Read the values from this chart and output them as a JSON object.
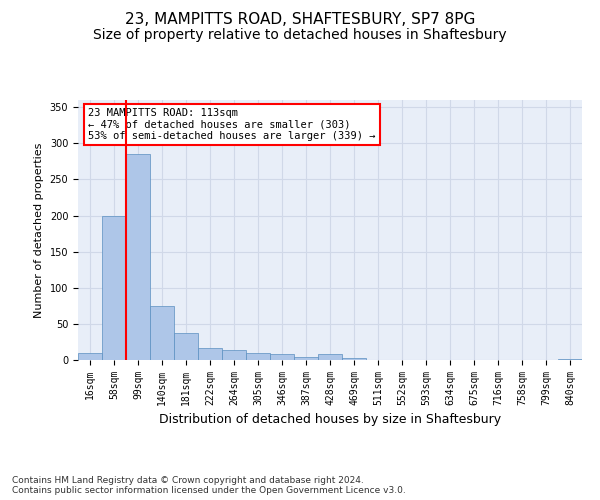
{
  "title_line1": "23, MAMPITTS ROAD, SHAFTESBURY, SP7 8PG",
  "title_line2": "Size of property relative to detached houses in Shaftesbury",
  "xlabel": "Distribution of detached houses by size in Shaftesbury",
  "ylabel": "Number of detached properties",
  "bin_labels": [
    "16sqm",
    "58sqm",
    "99sqm",
    "140sqm",
    "181sqm",
    "222sqm",
    "264sqm",
    "305sqm",
    "346sqm",
    "387sqm",
    "428sqm",
    "469sqm",
    "511sqm",
    "552sqm",
    "593sqm",
    "634sqm",
    "675sqm",
    "716sqm",
    "758sqm",
    "799sqm",
    "840sqm"
  ],
  "bar_values": [
    10,
    200,
    285,
    75,
    38,
    17,
    14,
    10,
    8,
    4,
    9,
    3,
    0,
    0,
    0,
    0,
    0,
    0,
    0,
    0,
    2
  ],
  "bar_color": "#aec6e8",
  "bar_edge_color": "#5a8fc0",
  "grid_color": "#d0d8e8",
  "background_color": "#e8eef8",
  "vline_color": "red",
  "annotation_text": "23 MAMPITTS ROAD: 113sqm\n← 47% of detached houses are smaller (303)\n53% of semi-detached houses are larger (339) →",
  "annotation_box_color": "white",
  "annotation_box_edgecolor": "red",
  "ylim": [
    0,
    360
  ],
  "yticks": [
    0,
    50,
    100,
    150,
    200,
    250,
    300,
    350
  ],
  "footer_text": "Contains HM Land Registry data © Crown copyright and database right 2024.\nContains public sector information licensed under the Open Government Licence v3.0.",
  "title_fontsize": 11,
  "subtitle_fontsize": 10,
  "xlabel_fontsize": 9,
  "ylabel_fontsize": 8,
  "tick_fontsize": 7,
  "annotation_fontsize": 7.5,
  "footer_fontsize": 6.5
}
